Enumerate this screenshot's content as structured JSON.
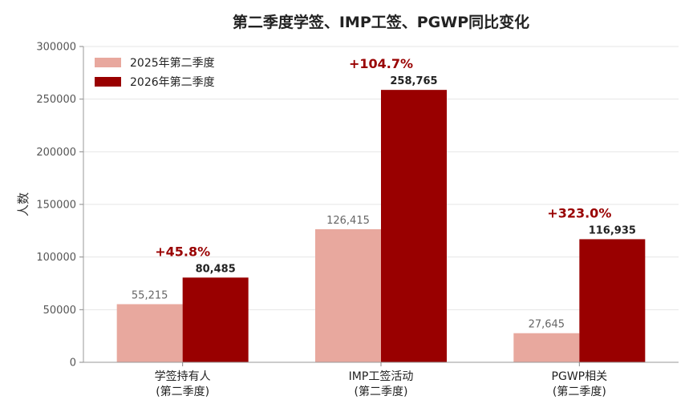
{
  "chart_data": {
    "type": "bar",
    "title": "第二季度学签、IMP工签、PGWP同比变化",
    "ylabel": "人数",
    "xlabel": "",
    "ylim": [
      0,
      300000
    ],
    "yticks": [
      "0",
      "50000",
      "100000",
      "150000",
      "200000",
      "250000",
      "300000"
    ],
    "ytick_values": [
      0,
      50000,
      100000,
      150000,
      200000,
      250000,
      300000
    ],
    "categories": [
      [
        "学签持有人",
        "(第二季度)"
      ],
      [
        "IMP工签活动",
        "(第二季度)"
      ],
      [
        "PGWP相关",
        "(第二季度)"
      ]
    ],
    "series": [
      {
        "name": "2025年第二季度",
        "values": [
          55215,
          126415,
          27645
        ],
        "labels": [
          "55,215",
          "126,415",
          "27,645"
        ],
        "color": "#e8a89e"
      },
      {
        "name": "2026年第二季度",
        "values": [
          80485,
          258765,
          116935
        ],
        "labels": [
          "80,485",
          "258,765",
          "116,935"
        ],
        "color": "#990000"
      }
    ],
    "changes": [
      "+45.8%",
      "+104.7%",
      "+323.0%"
    ],
    "change_color": "#990000",
    "grid": true,
    "legend_position": "top-left"
  }
}
